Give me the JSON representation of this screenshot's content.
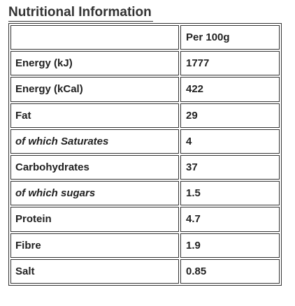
{
  "title": "Nutritional Information",
  "table": {
    "column_header": "Per 100g",
    "rows": [
      [
        "Energy (kJ)",
        "1777"
      ],
      [
        "Energy (kCal)",
        "422"
      ],
      [
        "Fat",
        "29"
      ],
      [
        "of which Saturates",
        "4"
      ],
      [
        "Carbohydrates",
        "37"
      ],
      [
        "of which sugars",
        "1.5"
      ],
      [
        "Protein",
        "4.7"
      ],
      [
        "Fibre",
        "1.9"
      ],
      [
        "Salt",
        "0.85"
      ]
    ]
  }
}
